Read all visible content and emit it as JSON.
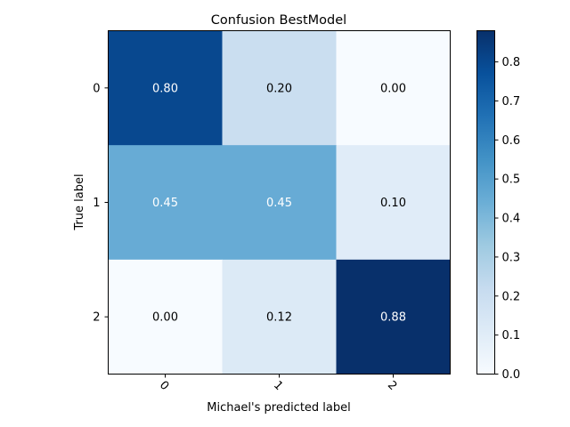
{
  "chart_data": {
    "type": "heatmap",
    "title": "Confusion BestModel",
    "xlabel": "Michael's predicted label",
    "ylabel": "True label",
    "x_categories": [
      "0",
      "1",
      "2"
    ],
    "y_categories": [
      "0",
      "1",
      "2"
    ],
    "values": [
      [
        0.8,
        0.2,
        0.0
      ],
      [
        0.45,
        0.45,
        0.1
      ],
      [
        0.0,
        0.12,
        0.88
      ]
    ],
    "cell_labels": [
      [
        "0.80",
        "0.20",
        "0.00"
      ],
      [
        "0.45",
        "0.45",
        "0.10"
      ],
      [
        "0.00",
        "0.12",
        "0.88"
      ]
    ],
    "colormap": "Blues",
    "colorbar": {
      "range": [
        0.0,
        0.88
      ],
      "ticks": [
        0.0,
        0.1,
        0.2,
        0.3,
        0.4,
        0.5,
        0.6,
        0.7,
        0.8
      ],
      "tick_labels": [
        "0.0",
        "0.1",
        "0.2",
        "0.3",
        "0.4",
        "0.5",
        "0.6",
        "0.7",
        "0.8"
      ]
    },
    "x_tick_rotation_deg": 45,
    "grid": false
  }
}
